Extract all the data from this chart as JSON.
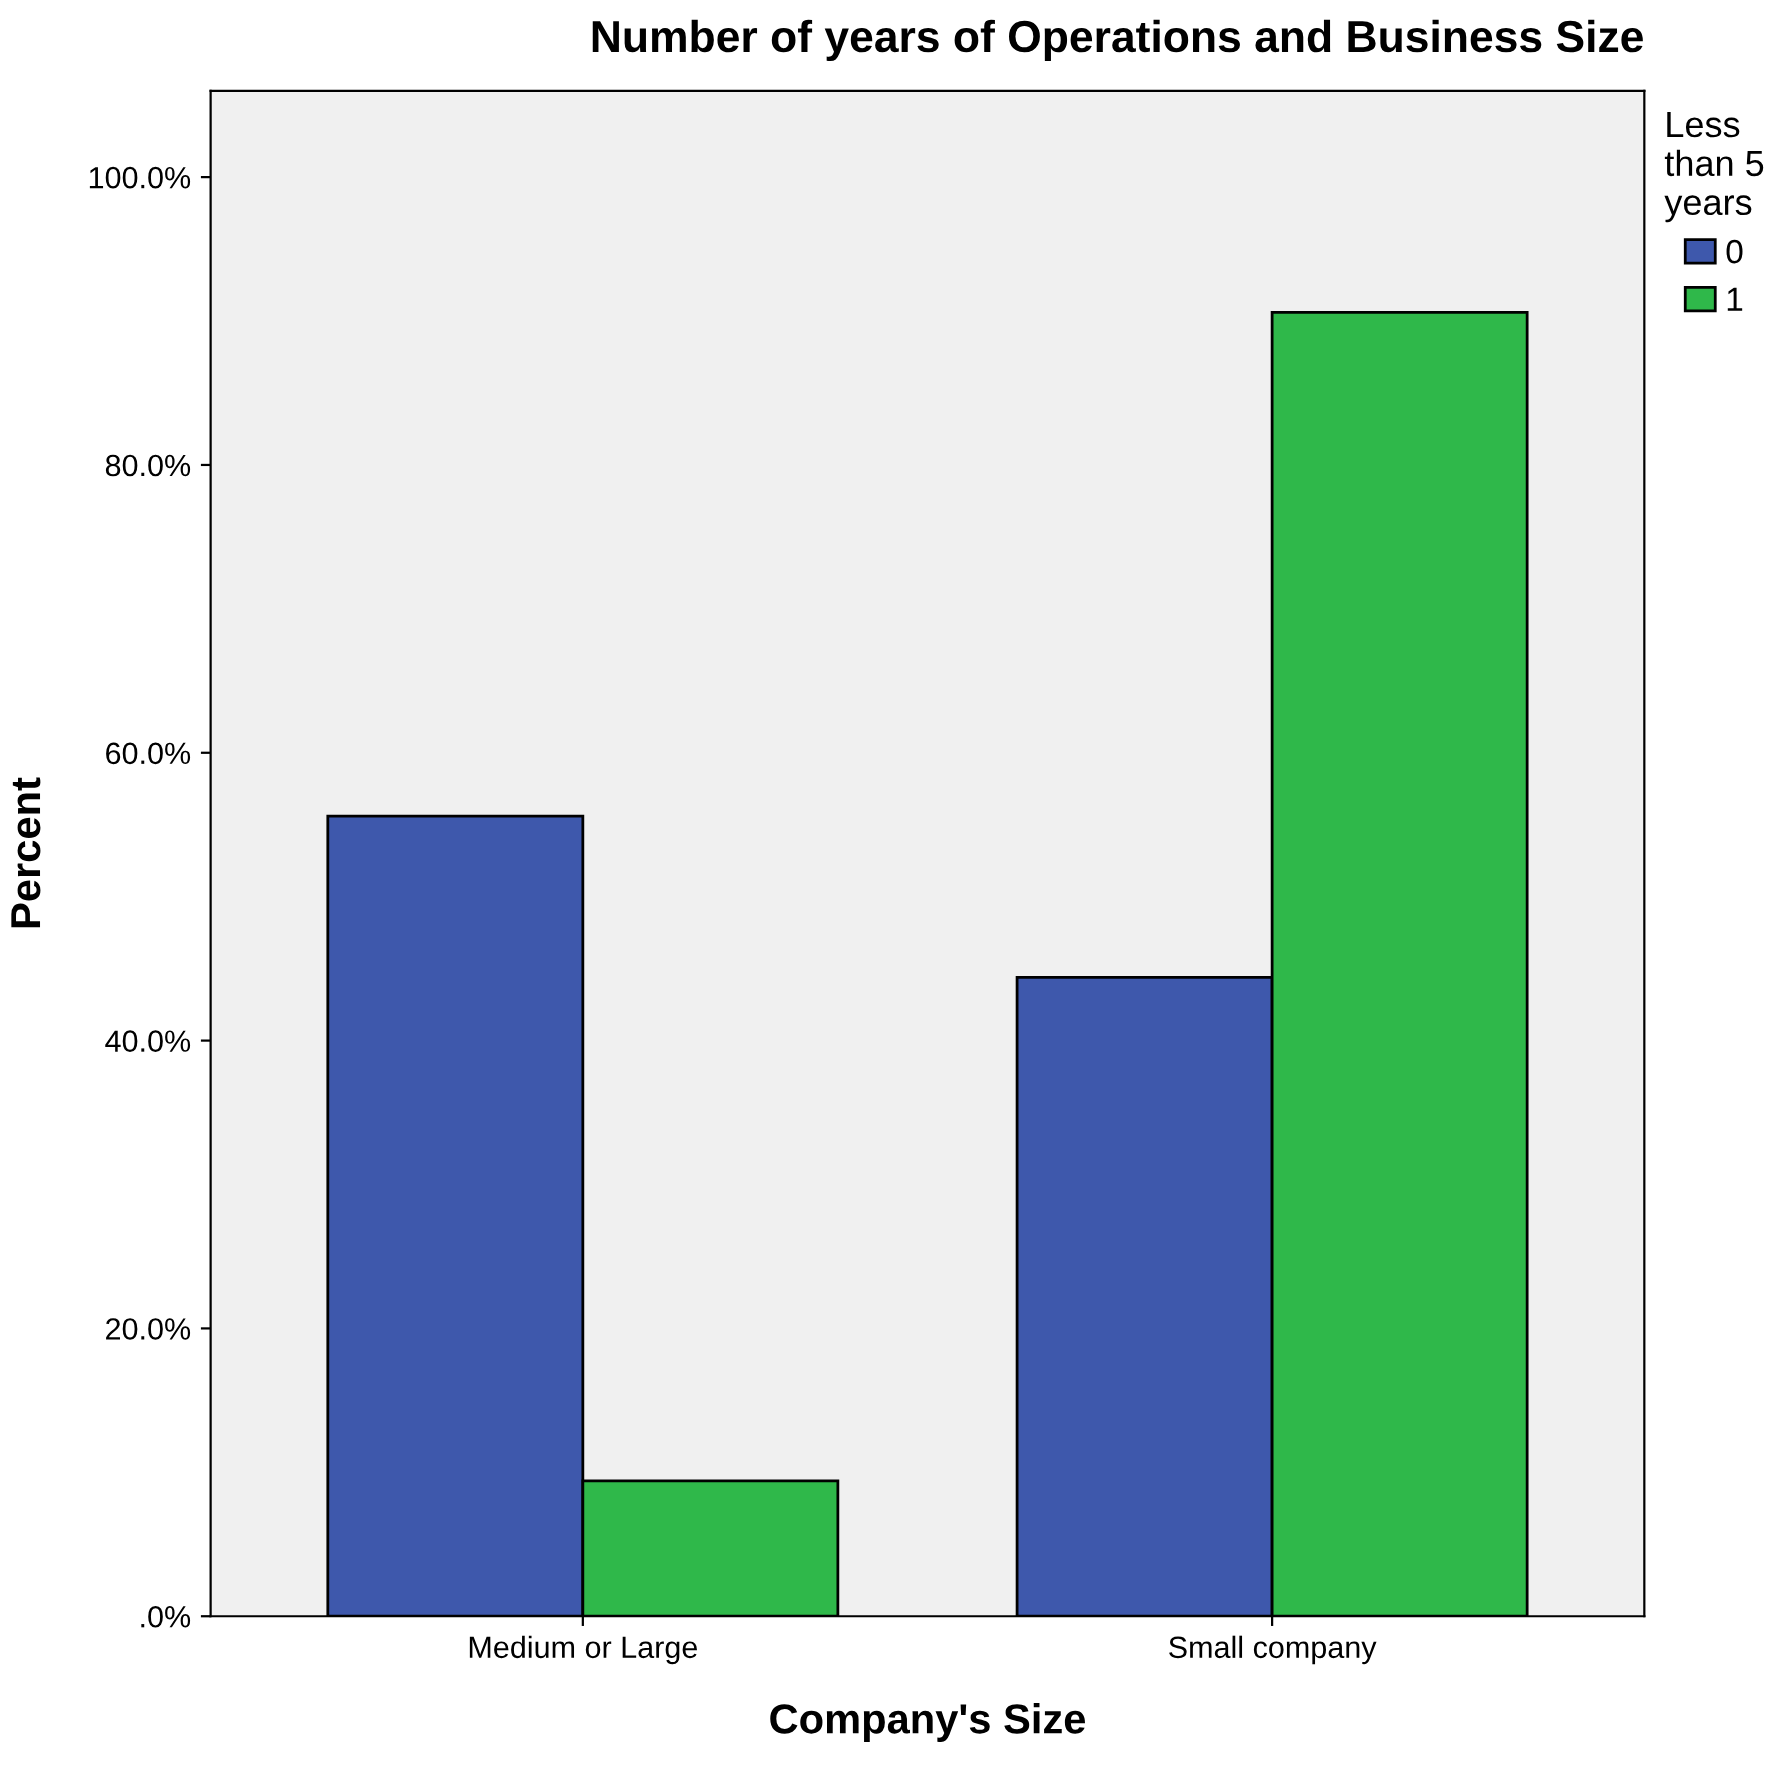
{
  "chart_data": {
    "type": "bar",
    "title": "Number of years of Operations and Business Size",
    "xlabel": "Company's Size",
    "ylabel": "Percent",
    "legend_title": "Less\nthan 5\nyears",
    "categories": [
      "Medium or Large",
      "Small company"
    ],
    "series": [
      {
        "name": "0",
        "color": "#3e58ac",
        "values": [
          55.6,
          44.4
        ]
      },
      {
        "name": "1",
        "color": "#2fb84a",
        "values": [
          9.4,
          90.6
        ]
      }
    ],
    "ylim": [
      0,
      106
    ],
    "yticks": [
      {
        "value": 0,
        "label": ".0%"
      },
      {
        "value": 20,
        "label": "20.0%"
      },
      {
        "value": 40,
        "label": "40.0%"
      },
      {
        "value": 60,
        "label": "60.0%"
      },
      {
        "value": 80,
        "label": "80.0%"
      },
      {
        "value": 100,
        "label": "100.0%"
      }
    ],
    "grid": false,
    "legend": "top right"
  }
}
